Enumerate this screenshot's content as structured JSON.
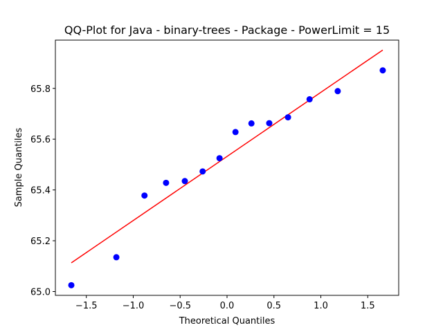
{
  "chart_data": {
    "type": "scatter",
    "title": "QQ-Plot for Java - binary-trees - Package - PowerLimit = 15",
    "xlabel": "Theoretical Quantiles",
    "ylabel": "Sample Quantiles",
    "xlim": [
      -1.83,
      1.83
    ],
    "ylim": [
      64.985,
      65.99
    ],
    "xticks": [
      -1.5,
      -1.0,
      -0.5,
      0.0,
      0.5,
      1.0,
      1.5
    ],
    "xtick_labels": [
      "−1.5",
      "−1.0",
      "−0.5",
      "0.0",
      "0.5",
      "1.0",
      "1.5"
    ],
    "yticks": [
      65.0,
      65.2,
      65.4,
      65.6,
      65.8
    ],
    "ytick_labels": [
      "65.0",
      "65.2",
      "65.4",
      "65.6",
      "65.8"
    ],
    "grid": false,
    "series": [
      {
        "kind": "points",
        "color": "#0000ff",
        "x": [
          -1.66,
          -1.18,
          -0.88,
          -0.65,
          -0.45,
          -0.26,
          -0.08,
          0.09,
          0.26,
          0.45,
          0.65,
          0.88,
          1.18,
          1.66
        ],
        "y": [
          65.025,
          65.135,
          65.378,
          65.428,
          65.435,
          65.473,
          65.525,
          65.628,
          65.662,
          65.663,
          65.686,
          65.757,
          65.789,
          65.871
        ]
      },
      {
        "kind": "line",
        "color": "#ff0000",
        "x": [
          -1.66,
          1.66
        ],
        "y": [
          65.113,
          65.951
        ]
      }
    ]
  }
}
